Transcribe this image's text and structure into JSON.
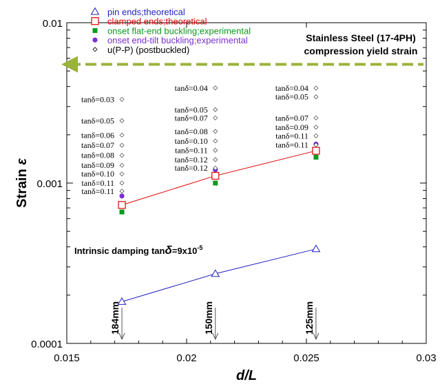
{
  "chart_data": {
    "type": "scatter",
    "xlabel": "d/L",
    "ylabel": "Strain ε",
    "ylabel_text": "Strain ",
    "ylabel_symbol": "ε",
    "x_scale": "linear",
    "y_scale": "log",
    "xlim": [
      0.015,
      0.03
    ],
    "ylim": [
      0.0001,
      0.01
    ],
    "x_ticks": [
      {
        "value": 0.015,
        "label": "0.015"
      },
      {
        "value": 0.02,
        "label": "0.02"
      },
      {
        "value": 0.025,
        "label": "0.025"
      },
      {
        "value": 0.03,
        "label": "0.03"
      }
    ],
    "y_ticks": [
      {
        "value": 0.0001,
        "label": "0.0001"
      },
      {
        "value": 0.001,
        "label": "0.001"
      },
      {
        "value": 0.01,
        "label": "0.01"
      }
    ],
    "legend": {
      "position": "top-left",
      "entries": [
        {
          "label": "pin ends;theoretical",
          "color": "#1f1fbf",
          "marker": "open-triangle"
        },
        {
          "label": "clamped ends;theoretical",
          "color": "#e00000",
          "marker": "open-square"
        },
        {
          "label": "onset flat-end buckling;experimental",
          "color": "#0a9a20",
          "marker": "filled-square"
        },
        {
          "label": "onset end-tilt buckling;experimental",
          "color": "#7a2fd0",
          "marker": "filled-circle"
        },
        {
          "label": "u(P-P) (postbuckled)",
          "color": "#000000",
          "marker": "open-diamond"
        }
      ]
    },
    "series": [
      {
        "name": "pin ends;theoretical",
        "color": "#1f1fbf",
        "marker": "open-triangle",
        "line": true,
        "x": [
          0.0173,
          0.0212,
          0.0254
        ],
        "y": [
          0.000182,
          0.000272,
          0.000388
        ]
      },
      {
        "name": "clamped ends;theoretical",
        "color": "#e00000",
        "marker": "open-square",
        "line": true,
        "x": [
          0.0173,
          0.0212,
          0.0254
        ],
        "y": [
          0.00073,
          0.00111,
          0.00159
        ]
      },
      {
        "name": "onset flat-end buckling;experimental",
        "color": "#0a9a20",
        "marker": "filled-square",
        "line": false,
        "x": [
          0.0173,
          0.0212,
          0.0254
        ],
        "y": [
          0.00066,
          0.001,
          0.00145
        ]
      },
      {
        "name": "onset end-tilt buckling;experimental",
        "color": "#7a2fd0",
        "marker": "filled-circle",
        "line": false,
        "x": [
          0.0173,
          0.0212,
          0.0254
        ],
        "y": [
          0.00083,
          0.00121,
          0.00175
        ]
      },
      {
        "name": "u(P-P) (postbuckled)",
        "color": "#555555",
        "marker": "open-diamond",
        "line": false,
        "x": [
          0.0173,
          0.0173,
          0.0173,
          0.0173,
          0.0173,
          0.0173,
          0.0173,
          0.0173,
          0.0173,
          0.0212,
          0.0212,
          0.0212,
          0.0212,
          0.0212,
          0.0212,
          0.0212,
          0.0212,
          0.0254,
          0.0254,
          0.0254,
          0.0254,
          0.0254,
          0.0254
        ],
        "y": [
          0.00333,
          0.00245,
          0.00199,
          0.00172,
          0.00149,
          0.00129,
          0.00114,
          0.001,
          0.00089,
          0.00392,
          0.00287,
          0.00255,
          0.0021,
          0.00183,
          0.0016,
          0.0014,
          0.00124,
          0.00391,
          0.00345,
          0.00255,
          0.00223,
          0.00197,
          0.00173
        ]
      }
    ],
    "tan_labels": [
      {
        "x": 0.0173,
        "labels": [
          "tanδ=0.03",
          "tanδ=0.05",
          "tanδ=0.06",
          "tanδ=0.07",
          "tanδ=0.08",
          "tanδ=0.09",
          "tanδ=0.10",
          "tanδ=0.11",
          "tanδ=0.11"
        ],
        "y": [
          0.00333,
          0.00245,
          0.00199,
          0.00172,
          0.00149,
          0.00129,
          0.00114,
          0.001,
          0.00089
        ]
      },
      {
        "x": 0.0212,
        "labels": [
          "tanδ=0.04",
          "tanδ=0.05",
          "tanδ=0.07",
          "tanδ=0.08",
          "tanδ=0.10",
          "tanδ=0.11",
          "tanδ=0.12",
          "tanδ=0.12"
        ],
        "y": [
          0.00392,
          0.00287,
          0.00255,
          0.0021,
          0.00183,
          0.0016,
          0.0014,
          0.00124
        ]
      },
      {
        "x": 0.0254,
        "labels": [
          "tanδ=0.04",
          "tanδ=0.05",
          "tanδ=0.07",
          "tanδ=0.09",
          "tanδ=0.11",
          "tanδ=0.11"
        ],
        "y": [
          0.00391,
          0.00345,
          0.00255,
          0.00223,
          0.00197,
          0.00173
        ]
      }
    ],
    "yield_line": {
      "y": 0.0055,
      "label_line1": "Stainless Steel (17-4PH)",
      "label_line2": "compression yield strain",
      "color": "#9ab33a"
    },
    "damping_note": {
      "prefix": "Intrinsic damping tan",
      "symbol": "δ",
      "value": "=9x10",
      "exponent": "-5"
    },
    "length_markers": [
      {
        "x": 0.0173,
        "label": "184mm"
      },
      {
        "x": 0.0212,
        "label": "150mm"
      },
      {
        "x": 0.0254,
        "label": "125mm"
      }
    ]
  }
}
